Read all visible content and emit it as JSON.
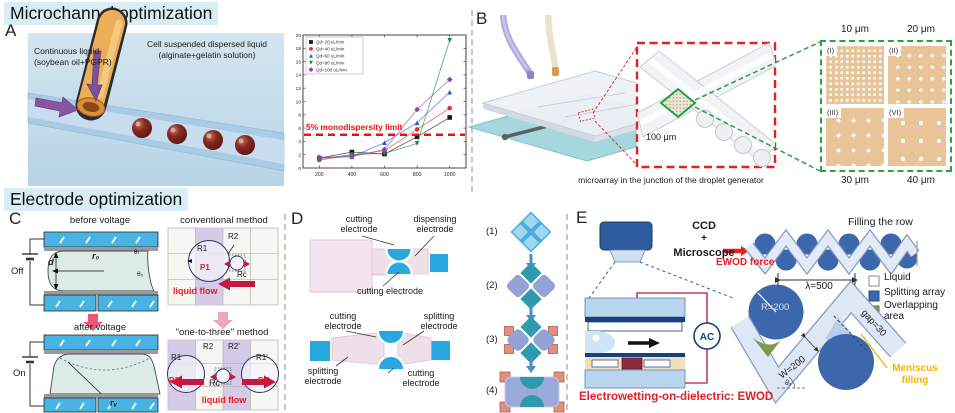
{
  "colors": {
    "highlight_bg": "#d9edf4",
    "accent_red": "#e81c24",
    "green_dashed": "#2aa33e",
    "array_bg": "#e8c498",
    "electrode_blue": "#29a7e0",
    "splitting_blue": "#3c67ad",
    "overlap_green": "#7c9a4c",
    "meniscus_yellow": "#f5b400",
    "purple_cell": "#cfc6e6"
  },
  "headers": {
    "microchannel": "Microchannel optimization",
    "electrode": "Electrode optimization"
  },
  "panelA": {
    "label": "A",
    "continuous": "Continuous liquid (soybean oil+PGPR)",
    "dispersed": "Cell suspended dispersed liquid (alginate+gelatin solution)"
  },
  "chart_data": {
    "type": "line",
    "x": [
      200,
      400,
      600,
      800,
      1000
    ],
    "series": [
      {
        "name": "Qd=20 uL/min",
        "color": "#1a1a1a",
        "marker": "square",
        "values": [
          1.5,
          2.4,
          2.1,
          4.7,
          7.6
        ]
      },
      {
        "name": "Qd=40 uL/min",
        "color": "#e03030",
        "marker": "circle",
        "values": [
          1.2,
          1.9,
          2.6,
          5.8,
          9.0
        ]
      },
      {
        "name": "Qd=60 uL/min",
        "color": "#2858c8",
        "marker": "triangle-up",
        "values": [
          1.5,
          1.7,
          3.8,
          6.8,
          11.4
        ]
      },
      {
        "name": "Qd=80 uL/min",
        "color": "#18874a",
        "marker": "triangle-down",
        "values": [
          1.4,
          2.0,
          2.2,
          3.7,
          19.2
        ]
      },
      {
        "name": "Qd=100 uL/min",
        "color": "#9048a8",
        "marker": "diamond",
        "values": [
          1.6,
          1.7,
          2.8,
          8.8,
          13.3
        ]
      }
    ],
    "annotation": "5% monodispersity limit",
    "reference_line_y": 5,
    "xlim": [
      100,
      1100
    ],
    "ylim": [
      0,
      20
    ],
    "xticks": [
      200,
      400,
      600,
      800,
      1000
    ],
    "yticks": [
      0,
      2,
      4,
      6,
      8,
      10,
      12,
      14,
      16,
      18,
      20
    ],
    "legend_position": "top-left",
    "grid": false
  },
  "panelB": {
    "label": "B",
    "scale": "100 μm",
    "caption": "microarray in the junction of the droplet generator",
    "top_labels": [
      "10 μm",
      "20 μm"
    ],
    "bottom_labels": [
      "30 μm",
      "40 μm"
    ],
    "array_ids": [
      "(I)",
      "(II)",
      "(III)",
      "(VI)"
    ]
  },
  "panelC": {
    "label": "C",
    "before_title": "before voltage",
    "after_title": "after voltage",
    "conventional_title": "conventional method",
    "one_to_three_title": "\"one-to-three\" method",
    "off": "Off",
    "on": "On",
    "d": "d",
    "r0": "r₀",
    "rv": "rᵥ",
    "theta_t": "θₜ",
    "theta_0": "θ₀",
    "R1": "R1",
    "R2": "R2",
    "Rc": "Rc",
    "P1": "P1",
    "R1p": "R1'",
    "R2p": "R2'",
    "P1p": "P1'",
    "liquid_flow": "liquid flow"
  },
  "panelD": {
    "label": "D",
    "cutting_top1": "cutting electrode",
    "dispensing": "dispensing electrode",
    "cutting_bottom1": "cutting electrode",
    "cutting_top2": "cutting electrode",
    "splitting_top2": "splitting electrode",
    "splitting_bottom2": "splitting electrode",
    "cutting_bottom2": "cutting electrode",
    "steps": [
      "(1)",
      "(2)",
      "(3)",
      "(4)"
    ]
  },
  "panelE": {
    "label": "E",
    "ccd": "CCD",
    "plus": "+",
    "microscope": "Microscope",
    "ac": "AC",
    "ewod_caption": "Electrowetting-on-dielectric: EWOD",
    "filling_row": "Filling the row",
    "ewod_force": "EWOD force",
    "legend": [
      "Liquid",
      "Splitting array",
      "Overlapping area"
    ],
    "lambda": "λ=500",
    "R": "R=200",
    "W": "W=200",
    "gap": "gap=30",
    "theta": "θₑ",
    "meniscus": "Meniscus filling"
  }
}
